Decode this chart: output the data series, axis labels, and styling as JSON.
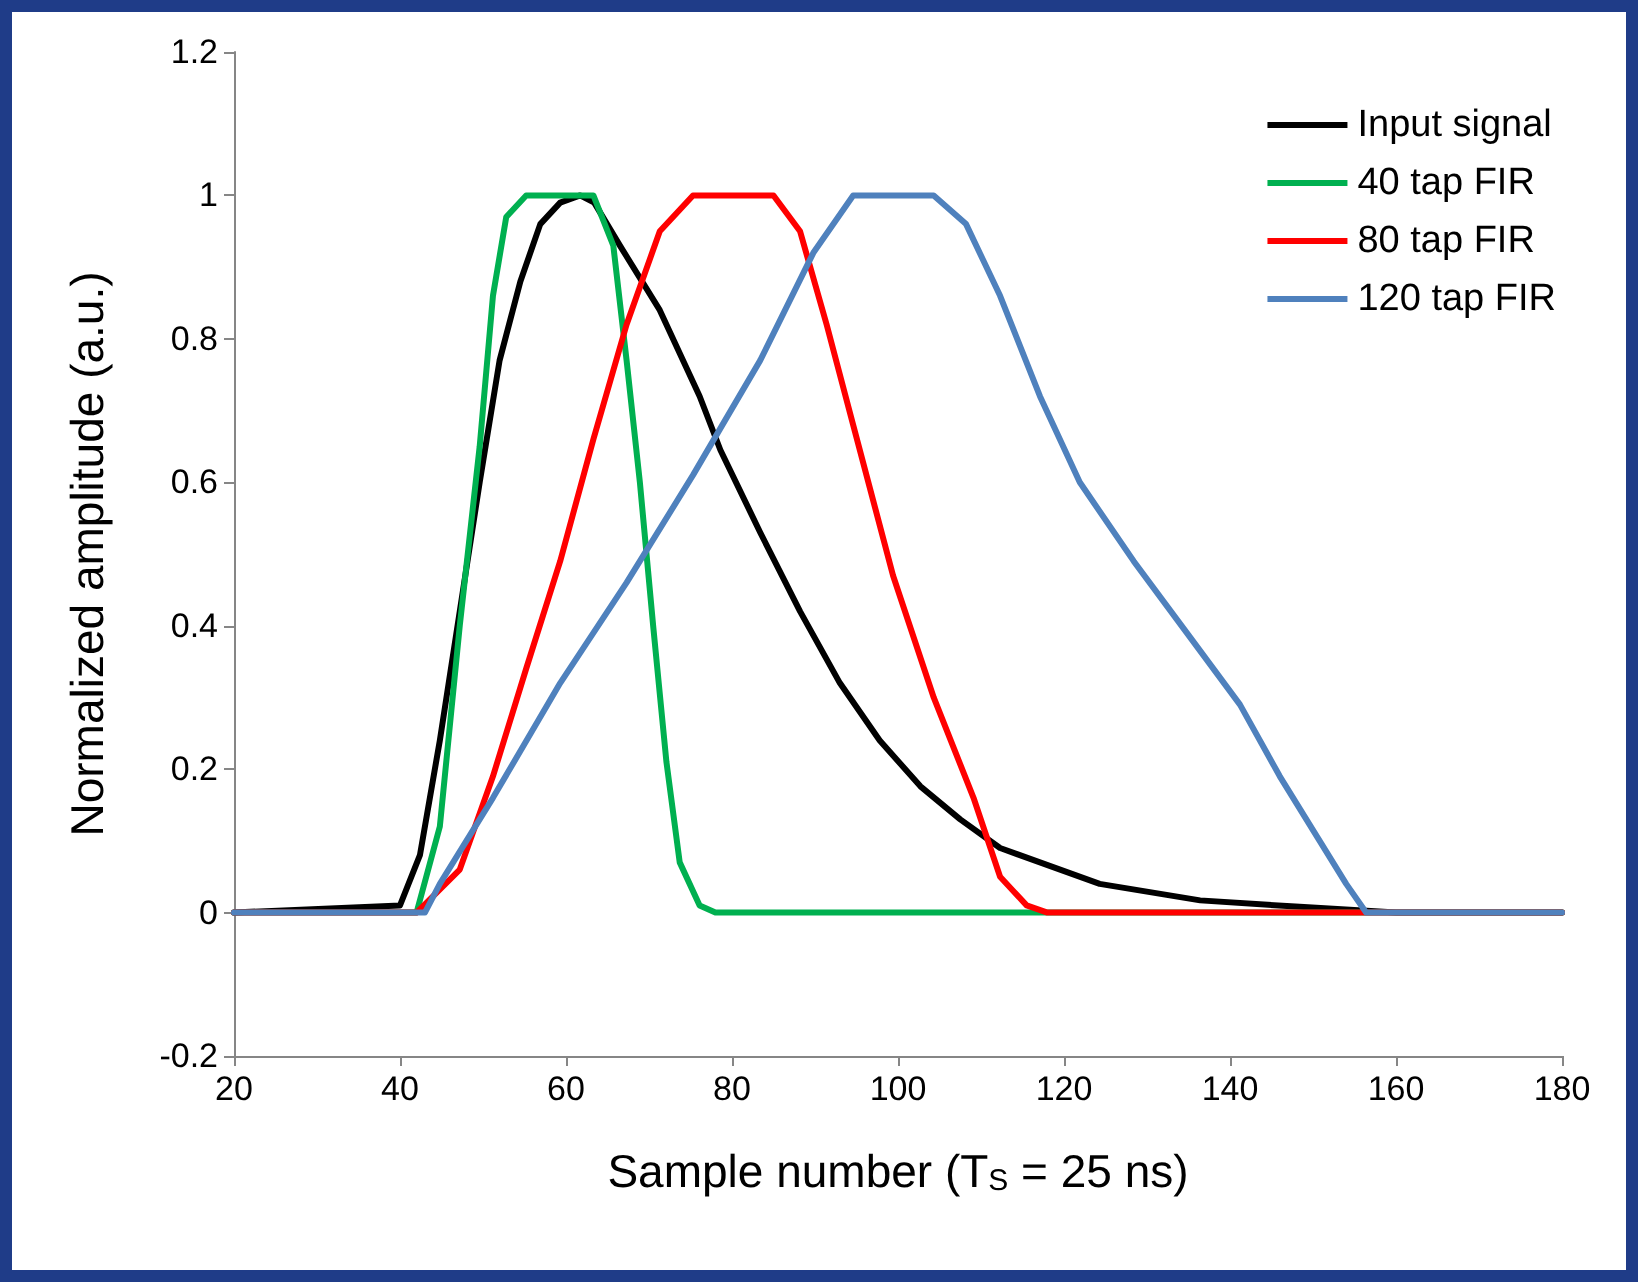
{
  "chart_data": {
    "type": "line",
    "xlabel": "Sample number (T$_{S}$ = 25 ns)",
    "ylabel": "Normalized amplitude (a.u.)",
    "xlim": [
      20,
      180
    ],
    "xticks": [
      20,
      40,
      60,
      80,
      100,
      120,
      140,
      160,
      180
    ],
    "ylim": [
      -0.2,
      1.2
    ],
    "yticks": [
      -0.2,
      0,
      0.2,
      0.4,
      0.6,
      0.8,
      1,
      1.2
    ],
    "grid": false,
    "legend": "top right",
    "marker": "none",
    "line_style": "solid",
    "series": [
      {
        "name": "Input signal",
        "color": "#000000",
        "x": [
          20,
          40,
          42.4,
          44.8,
          47.2,
          49.6,
          52,
          54.5,
          56.9,
          59.3,
          61.7,
          63.4,
          66.5,
          71.3,
          76.1,
          78.6,
          83.4,
          88.2,
          93,
          97.8,
          102.7,
          107.5,
          112.3,
          124.3,
          136.4,
          148.4,
          160,
          180
        ],
        "values": [
          0,
          0.01,
          0.08,
          0.24,
          0.42,
          0.6,
          0.77,
          0.88,
          0.96,
          0.99,
          1,
          0.99,
          0.93,
          0.84,
          0.72,
          0.645,
          0.53,
          0.42,
          0.32,
          0.24,
          0.176,
          0.13,
          0.09,
          0.04,
          0.017,
          0.008,
          0,
          0
        ]
      },
      {
        "name": "40 tap FIR",
        "color": "#00b050",
        "x": [
          20,
          42,
          44.8,
          47.2,
          49.6,
          51.2,
          52.8,
          55.2,
          63.3,
          65.7,
          67.3,
          68.9,
          70.5,
          72.1,
          73.7,
          76.1,
          78,
          180
        ],
        "values": [
          0,
          0,
          0.12,
          0.4,
          0.65,
          0.86,
          0.97,
          1,
          1,
          0.93,
          0.77,
          0.6,
          0.4,
          0.21,
          0.07,
          0.01,
          0,
          0
        ]
      },
      {
        "name": "80 tap FIR",
        "color": "#ff0000",
        "x": [
          20,
          42,
          47.2,
          51.2,
          55.2,
          59.3,
          63.3,
          67.3,
          71.3,
          75.3,
          85,
          88.2,
          91.4,
          94.6,
          99.4,
          104.3,
          109.1,
          112.3,
          115.5,
          118,
          180
        ],
        "values": [
          0,
          0,
          0.06,
          0.19,
          0.34,
          0.49,
          0.66,
          0.82,
          0.95,
          1,
          1,
          0.95,
          0.82,
          0.68,
          0.47,
          0.3,
          0.16,
          0.05,
          0.01,
          0,
          0
        ]
      },
      {
        "name": "120 tap FIR",
        "color": "#4f81bd",
        "x": [
          20,
          43,
          44.8,
          51.2,
          59.3,
          67.3,
          75.3,
          83.4,
          89.8,
          94.6,
          104.3,
          108.2,
          112.3,
          117.1,
          121.9,
          128.4,
          134.8,
          141.2,
          146,
          150.8,
          154,
          156.4,
          180
        ],
        "values": [
          0,
          0,
          0.04,
          0.16,
          0.32,
          0.46,
          0.61,
          0.77,
          0.92,
          1,
          1,
          0.96,
          0.86,
          0.72,
          0.6,
          0.49,
          0.39,
          0.29,
          0.19,
          0.1,
          0.04,
          0,
          0
        ]
      }
    ]
  }
}
